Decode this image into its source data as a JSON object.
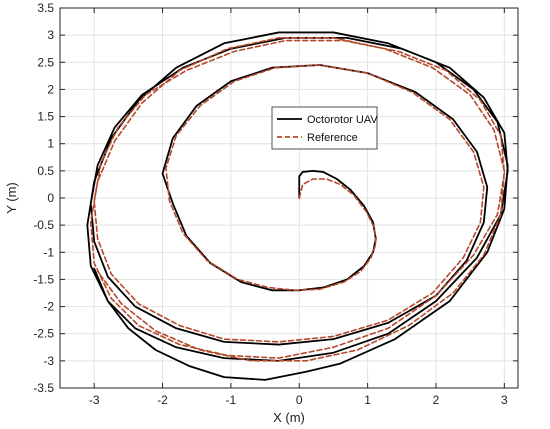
{
  "chart_data": {
    "type": "line",
    "xlabel": "X (m)",
    "ylabel": "Y (m)",
    "xlim": [
      -3.5,
      3.2
    ],
    "ylim": [
      -3.5,
      3.5
    ],
    "xticks": [
      -3,
      -2,
      -1,
      0,
      1,
      2,
      3
    ],
    "yticks": [
      -3.5,
      -3,
      -2.5,
      -2,
      -1.5,
      -1,
      -0.5,
      0,
      0.5,
      1,
      1.5,
      2,
      2.5,
      3,
      3.5
    ],
    "grid": true,
    "legend_position": "center-right",
    "series": [
      {
        "name": "Octorotor UAV",
        "color": "#000000",
        "dash": "solid",
        "x": [
          0.0,
          0.0,
          0.05,
          0.2,
          0.35,
          0.55,
          0.75,
          0.95,
          1.08,
          1.12,
          1.08,
          0.95,
          0.7,
          0.35,
          0.0,
          -0.4,
          -0.85,
          -1.3,
          -1.65,
          -1.85,
          -2.0,
          -1.85,
          -1.5,
          -1.0,
          -0.4,
          0.3,
          1.0,
          1.7,
          2.25,
          2.6,
          2.75,
          2.7,
          2.45,
          2.0,
          1.3,
          0.5,
          -0.3,
          -1.1,
          -1.8,
          -2.4,
          -2.8,
          -3.0,
          -3.05,
          -2.95,
          -2.7,
          -2.3,
          -1.7,
          -1.0,
          -0.2,
          0.7,
          1.5,
          2.2,
          2.7,
          3.0,
          3.05,
          2.95,
          2.6,
          2.0,
          1.3,
          0.5,
          -0.3,
          -1.1,
          -1.8,
          -2.4,
          -2.8,
          -3.05,
          -3.1,
          -3.0,
          -2.75,
          -2.35,
          -1.8,
          -1.1,
          -0.3,
          0.5,
          1.3,
          2.0,
          2.55,
          2.9,
          3.05,
          3.0,
          2.75,
          2.2,
          1.4,
          0.6,
          0.1,
          -0.5,
          -1.1,
          -1.6,
          -2.1,
          -2.5,
          -2.8,
          -3.0
        ],
        "y": [
          0.0,
          0.4,
          0.48,
          0.5,
          0.48,
          0.35,
          0.15,
          -0.15,
          -0.45,
          -0.75,
          -1.0,
          -1.25,
          -1.5,
          -1.65,
          -1.7,
          -1.7,
          -1.55,
          -1.2,
          -0.7,
          -0.1,
          0.45,
          1.1,
          1.7,
          2.15,
          2.4,
          2.45,
          2.3,
          1.95,
          1.45,
          0.85,
          0.2,
          -0.45,
          -1.15,
          -1.8,
          -2.3,
          -2.6,
          -2.7,
          -2.65,
          -2.4,
          -2.0,
          -1.45,
          -0.8,
          -0.1,
          0.6,
          1.3,
          1.9,
          2.4,
          2.75,
          2.95,
          2.95,
          2.75,
          2.4,
          1.85,
          1.2,
          0.5,
          -0.3,
          -1.1,
          -1.9,
          -2.5,
          -2.85,
          -3.0,
          -2.95,
          -2.75,
          -2.4,
          -1.9,
          -1.25,
          -0.5,
          0.3,
          1.1,
          1.8,
          2.4,
          2.85,
          3.05,
          3.05,
          2.85,
          2.5,
          2.0,
          1.4,
          0.6,
          -0.2,
          -1.0,
          -1.9,
          -2.6,
          -3.05,
          -3.2,
          -3.35,
          -3.3,
          -3.1,
          -2.8,
          -2.4,
          -1.9,
          -1.3
        ]
      },
      {
        "name": "Reference",
        "color": "#b5492a",
        "dash": "dashed",
        "x": [
          0.0,
          0.05,
          0.2,
          0.4,
          0.6,
          0.8,
          0.98,
          1.1,
          1.12,
          1.05,
          0.9,
          0.65,
          0.3,
          -0.05,
          -0.45,
          -0.9,
          -1.35,
          -1.7,
          -1.9,
          -1.95,
          -1.8,
          -1.45,
          -0.95,
          -0.35,
          0.3,
          1.0,
          1.65,
          2.2,
          2.55,
          2.7,
          2.65,
          2.4,
          1.95,
          1.3,
          0.5,
          -0.3,
          -1.1,
          -1.75,
          -2.35,
          -2.75,
          -2.95,
          -3.0,
          -2.9,
          -2.65,
          -2.25,
          -1.65,
          -0.95,
          -0.2,
          0.65,
          1.45,
          2.15,
          2.65,
          2.95,
          3.0,
          2.9,
          2.55,
          2.0,
          1.3,
          0.5,
          -0.3,
          -1.05,
          -1.75,
          -2.35,
          -2.75,
          -3.0,
          -3.05,
          -2.95,
          -2.7,
          -2.3,
          -1.75,
          -1.05,
          -0.3,
          0.5,
          1.25,
          1.95,
          2.5,
          2.85,
          3.0,
          2.95,
          2.7,
          2.25,
          1.6,
          0.85,
          0.1,
          -0.7,
          -1.45,
          -2.1,
          -2.6,
          -2.95
        ],
        "y": [
          0.0,
          0.25,
          0.35,
          0.35,
          0.25,
          0.05,
          -0.25,
          -0.55,
          -0.85,
          -1.1,
          -1.35,
          -1.55,
          -1.68,
          -1.7,
          -1.65,
          -1.5,
          -1.15,
          -0.65,
          -0.05,
          0.55,
          1.15,
          1.7,
          2.15,
          2.4,
          2.45,
          2.3,
          1.95,
          1.45,
          0.85,
          0.2,
          -0.45,
          -1.1,
          -1.75,
          -2.25,
          -2.55,
          -2.65,
          -2.6,
          -2.35,
          -1.95,
          -1.4,
          -0.75,
          -0.05,
          0.65,
          1.3,
          1.9,
          2.35,
          2.7,
          2.9,
          2.9,
          2.7,
          2.35,
          1.8,
          1.15,
          0.45,
          -0.3,
          -1.05,
          -1.8,
          -2.4,
          -2.75,
          -2.95,
          -2.9,
          -2.7,
          -2.35,
          -1.85,
          -1.2,
          -0.45,
          0.3,
          1.05,
          1.75,
          2.35,
          2.75,
          2.95,
          2.95,
          2.75,
          2.4,
          1.9,
          1.25,
          0.5,
          -0.3,
          -1.05,
          -1.75,
          -2.35,
          -2.8,
          -3.0,
          -3.0,
          -2.8,
          -2.45,
          -1.95,
          -1.35
        ]
      }
    ]
  }
}
